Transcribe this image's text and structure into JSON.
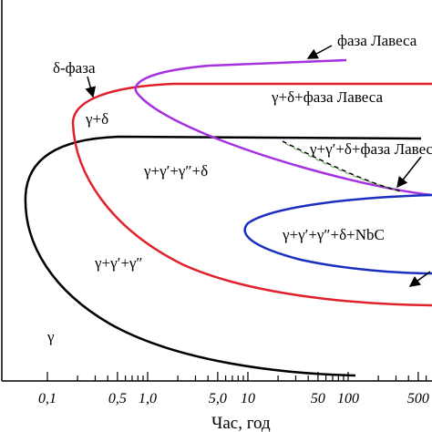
{
  "diagram": {
    "region_labels": [
      "δ-фаза",
      "γ+δ",
      "γ+δ+фаза Лавеса",
      "γ+γ′+δ+фаза Лавеса",
      "γ+γ′+γ″+δ",
      "γ+γ′+γ″+δ+NbC",
      "γ+γ′+γ″",
      "γ"
    ],
    "curve_label": "фаза Лавеса",
    "x_tick_labels": [
      "0,1",
      "0,5",
      "1,0",
      "5,0",
      "10",
      "50",
      "100",
      "500"
    ],
    "x_axis_label": "Час, год"
  }
}
